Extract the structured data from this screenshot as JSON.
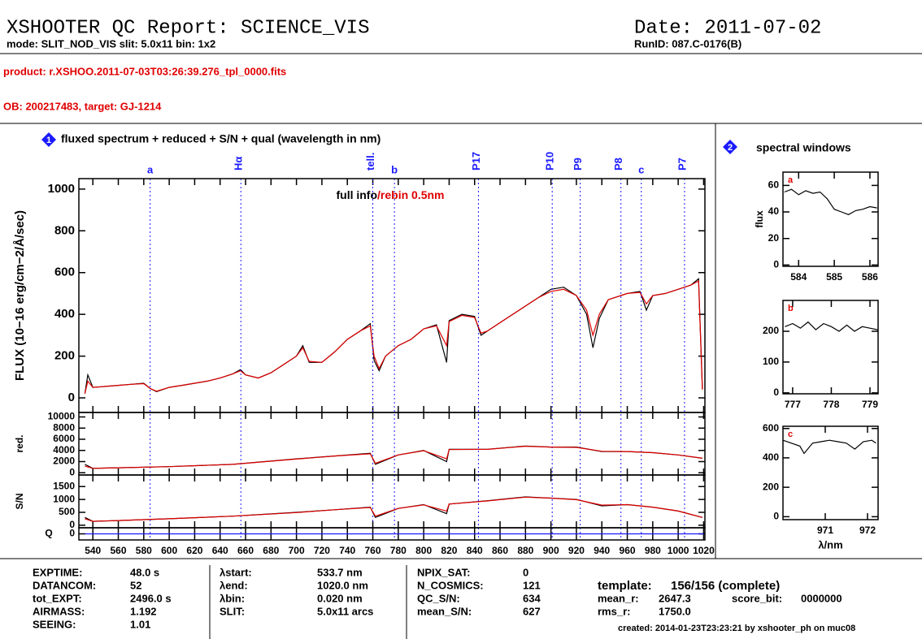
{
  "header": {
    "title": "XSHOOTER QC Report: SCIENCE_VIS",
    "subtitle": "mode: SLIT_NOD_VIS slit: 5.0x11 bin: 1x2",
    "date": "Date: 2011-07-02",
    "runid": "RunID: 087.C-0176(B)",
    "product": "product: r.XSHOO.2011-07-03T03:26:39.276_tpl_0000.fits",
    "ob": "OB: 200217483, target: GJ-1214"
  },
  "windows_panel": {
    "badge": "2",
    "title": "spectral windows"
  },
  "chart_data": [
    {
      "type": "line",
      "badge": "1",
      "title": "fluxed spectrum + reduced + S/N + qual (wavelength in nm)",
      "y_label": "FLUX (10−16 erg/cm−2/Å/sec)",
      "xlim": [
        529,
        1021
      ],
      "xticks": [
        540,
        560,
        580,
        600,
        620,
        640,
        660,
        680,
        700,
        720,
        740,
        760,
        780,
        800,
        820,
        840,
        860,
        880,
        900,
        920,
        940,
        960,
        980,
        1000,
        1020
      ],
      "ylim": [
        -70,
        1050
      ],
      "yticks": [
        0,
        200,
        400,
        600,
        800,
        1000
      ],
      "x": [
        533.7,
        536,
        540,
        550,
        560,
        570,
        580,
        585,
        590,
        600,
        610,
        620,
        630,
        640,
        650,
        656,
        660,
        670,
        680,
        690,
        700,
        705,
        710,
        720,
        730,
        740,
        750,
        758,
        761,
        765,
        770,
        780,
        790,
        800,
        810,
        818,
        820,
        830,
        840,
        845,
        850,
        860,
        870,
        880,
        890,
        900,
        910,
        920,
        928,
        933,
        938,
        945,
        950,
        960,
        970,
        975,
        980,
        990,
        1000,
        1010,
        1016,
        1019
      ],
      "series": [
        {
          "name": "full info",
          "color": "#000000",
          "values": [
            20,
            110,
            50,
            55,
            60,
            65,
            70,
            45,
            30,
            50,
            60,
            70,
            80,
            95,
            115,
            135,
            110,
            95,
            120,
            160,
            200,
            250,
            170,
            170,
            220,
            280,
            320,
            355,
            180,
            130,
            200,
            250,
            280,
            330,
            350,
            170,
            370,
            400,
            390,
            300,
            320,
            360,
            400,
            440,
            480,
            520,
            530,
            490,
            400,
            240,
            380,
            470,
            480,
            500,
            510,
            420,
            490,
            500,
            520,
            540,
            570,
            40
          ]
        },
        {
          "name": "/rebin 0.5nm",
          "color": "#e00000",
          "values": [
            20,
            80,
            50,
            55,
            60,
            65,
            68,
            45,
            32,
            50,
            60,
            70,
            80,
            95,
            115,
            130,
            110,
            95,
            120,
            160,
            200,
            240,
            175,
            170,
            220,
            280,
            320,
            345,
            200,
            140,
            200,
            250,
            280,
            330,
            345,
            250,
            365,
            395,
            385,
            310,
            320,
            360,
            400,
            440,
            480,
            510,
            520,
            490,
            420,
            300,
            400,
            470,
            480,
            500,
            505,
            450,
            490,
            500,
            520,
            540,
            560,
            40
          ]
        }
      ],
      "annotations": [
        {
          "label": "a",
          "x": 585
        },
        {
          "label": "Hα",
          "x": 656.3
        },
        {
          "label": "tell.",
          "x": 760
        },
        {
          "label": "b",
          "x": 777
        },
        {
          "label": "P17",
          "x": 843
        },
        {
          "label": "P10",
          "x": 901
        },
        {
          "label": "P9",
          "x": 923
        },
        {
          "label": "P8",
          "x": 955
        },
        {
          "label": "c",
          "x": 971
        },
        {
          "label": "P7",
          "x": 1005
        }
      ]
    },
    {
      "type": "line",
      "y_label": "red.",
      "xlim": [
        529,
        1021
      ],
      "xticks": [
        540,
        560,
        580,
        600,
        620,
        640,
        660,
        680,
        700,
        720,
        740,
        760,
        780,
        800,
        820,
        840,
        860,
        880,
        900,
        920,
        940,
        960,
        980,
        1000,
        1020
      ],
      "ylim": [
        -400,
        10800
      ],
      "yticks": [
        0,
        2000,
        4000,
        6000,
        8000,
        10000
      ],
      "x": [
        533.7,
        540,
        560,
        600,
        650,
        700,
        730,
        758,
        762,
        780,
        800,
        818,
        820,
        850,
        880,
        900,
        920,
        940,
        960,
        980,
        1000,
        1019
      ],
      "series": [
        {
          "color": "#000000",
          "values": [
            1500,
            800,
            900,
            1100,
            1500,
            2500,
            3000,
            3500,
            1500,
            3200,
            4000,
            2000,
            4200,
            4200,
            4800,
            4600,
            4600,
            3800,
            3800,
            3600,
            3200,
            2600
          ]
        },
        {
          "color": "#e00000",
          "values": [
            1200,
            800,
            900,
            1100,
            1500,
            2450,
            3000,
            3400,
            1700,
            3200,
            3950,
            2500,
            4150,
            4200,
            4750,
            4600,
            4550,
            3850,
            3800,
            3600,
            3200,
            2600
          ]
        }
      ]
    },
    {
      "type": "line",
      "y_label": "S/N",
      "xlim": [
        529,
        1021
      ],
      "xticks": [
        540,
        560,
        580,
        600,
        620,
        640,
        660,
        680,
        700,
        720,
        740,
        760,
        780,
        800,
        820,
        840,
        860,
        880,
        900,
        920,
        940,
        960,
        980,
        1000,
        1020
      ],
      "ylim": [
        -100,
        1950
      ],
      "yticks": [
        0,
        500,
        1000,
        1500
      ],
      "x": [
        533.7,
        540,
        560,
        600,
        650,
        700,
        730,
        758,
        762,
        780,
        800,
        818,
        820,
        850,
        880,
        900,
        920,
        940,
        960,
        980,
        1000,
        1019
      ],
      "series": [
        {
          "color": "#000000",
          "values": [
            300,
            150,
            180,
            250,
            350,
            500,
            600,
            700,
            300,
            650,
            800,
            450,
            820,
            950,
            1100,
            1050,
            1000,
            750,
            800,
            700,
            550,
            300
          ]
        },
        {
          "color": "#e00000",
          "values": [
            250,
            150,
            180,
            250,
            350,
            490,
            600,
            690,
            350,
            650,
            790,
            550,
            820,
            940,
            1090,
            1050,
            990,
            780,
            800,
            700,
            550,
            300
          ]
        }
      ]
    },
    {
      "type": "line",
      "y_label": "Q",
      "xlim": [
        529,
        1021
      ],
      "xticks": [
        540,
        560,
        580,
        600,
        620,
        640,
        660,
        680,
        700,
        720,
        740,
        760,
        780,
        800,
        820,
        840,
        860,
        880,
        900,
        920,
        940,
        960,
        980,
        1000,
        1020
      ],
      "ylim": [
        -1,
        1
      ],
      "yticks": [
        0
      ],
      "x": [
        533.7,
        1020
      ],
      "series": [
        {
          "color": "#1a1aff",
          "values": [
            0,
            0
          ]
        }
      ]
    },
    {
      "type": "line",
      "title": "a",
      "y_label": "flux",
      "xlim": [
        583.56,
        586.23
      ],
      "xticks": [
        584,
        585,
        586
      ],
      "ylim": [
        -1,
        70
      ],
      "yticks": [
        0,
        20,
        40,
        60
      ],
      "x": [
        583.6,
        583.8,
        584.0,
        584.2,
        584.4,
        584.6,
        584.8,
        585.0,
        585.2,
        585.4,
        585.6,
        585.8,
        586.0,
        586.2
      ],
      "series": [
        {
          "color": "#000000",
          "values": [
            55,
            57,
            53,
            56,
            54,
            55,
            50,
            42,
            40,
            38,
            41,
            42,
            44,
            43
          ]
        }
      ]
    },
    {
      "type": "line",
      "title": "b",
      "xlim": [
        776.75,
        779.21
      ],
      "xticks": [
        777,
        778,
        779
      ],
      "ylim": [
        -3,
        300
      ],
      "yticks": [
        0,
        100,
        200
      ],
      "x": [
        776.8,
        777.0,
        777.2,
        777.4,
        777.6,
        777.8,
        778.0,
        778.2,
        778.4,
        778.6,
        778.8,
        779.0,
        779.2
      ],
      "series": [
        {
          "color": "#000000",
          "values": [
            215,
            225,
            210,
            230,
            205,
            225,
            215,
            200,
            220,
            200,
            215,
            210,
            205
          ]
        }
      ]
    },
    {
      "type": "line",
      "title": "c",
      "x_label": "λ/nm",
      "xlim": [
        970.0,
        972.25
      ],
      "xticks": [
        971,
        972
      ],
      "ylim": [
        -20,
        615
      ],
      "yticks": [
        0,
        200,
        400,
        600
      ],
      "x": [
        970.0,
        970.2,
        970.4,
        970.5,
        970.7,
        970.9,
        971.1,
        971.3,
        971.5,
        971.7,
        971.9,
        972.1,
        972.2
      ],
      "series": [
        {
          "color": "#000000",
          "values": [
            520,
            500,
            480,
            430,
            500,
            510,
            520,
            510,
            500,
            460,
            510,
            520,
            500
          ]
        }
      ]
    }
  ],
  "footer": {
    "col1": [
      [
        "EXPTIME:",
        "48.0 s"
      ],
      [
        "DATANCOM:",
        "52"
      ],
      [
        "tot_EXPT:",
        "2496.0 s"
      ],
      [
        "AIRMASS:",
        "1.192"
      ],
      [
        "SEEING:",
        "1.01"
      ]
    ],
    "col2": [
      [
        "λstart:",
        "533.7 nm"
      ],
      [
        "λend:",
        "1020.0 nm"
      ],
      [
        "λbin:",
        "0.020 nm"
      ],
      [
        "SLIT:",
        "5.0x11 arcs"
      ]
    ],
    "col3": [
      [
        "NPIX_SAT:",
        "0"
      ],
      [
        "N_COSMICS:",
        "121"
      ],
      [
        "QC_S/N:",
        "634"
      ],
      [
        "mean_S/N:",
        "627"
      ]
    ],
    "right": [
      [
        "template:",
        "156/156 (complete)"
      ],
      [
        "mean_r:",
        "2647.3"
      ],
      [
        "rms_r:",
        "1750.0"
      ]
    ],
    "score": [
      "score_bit:",
      "0000000"
    ],
    "created": "created: 2014-01-23T23:23:21 by xshooter_ph on muc08"
  }
}
